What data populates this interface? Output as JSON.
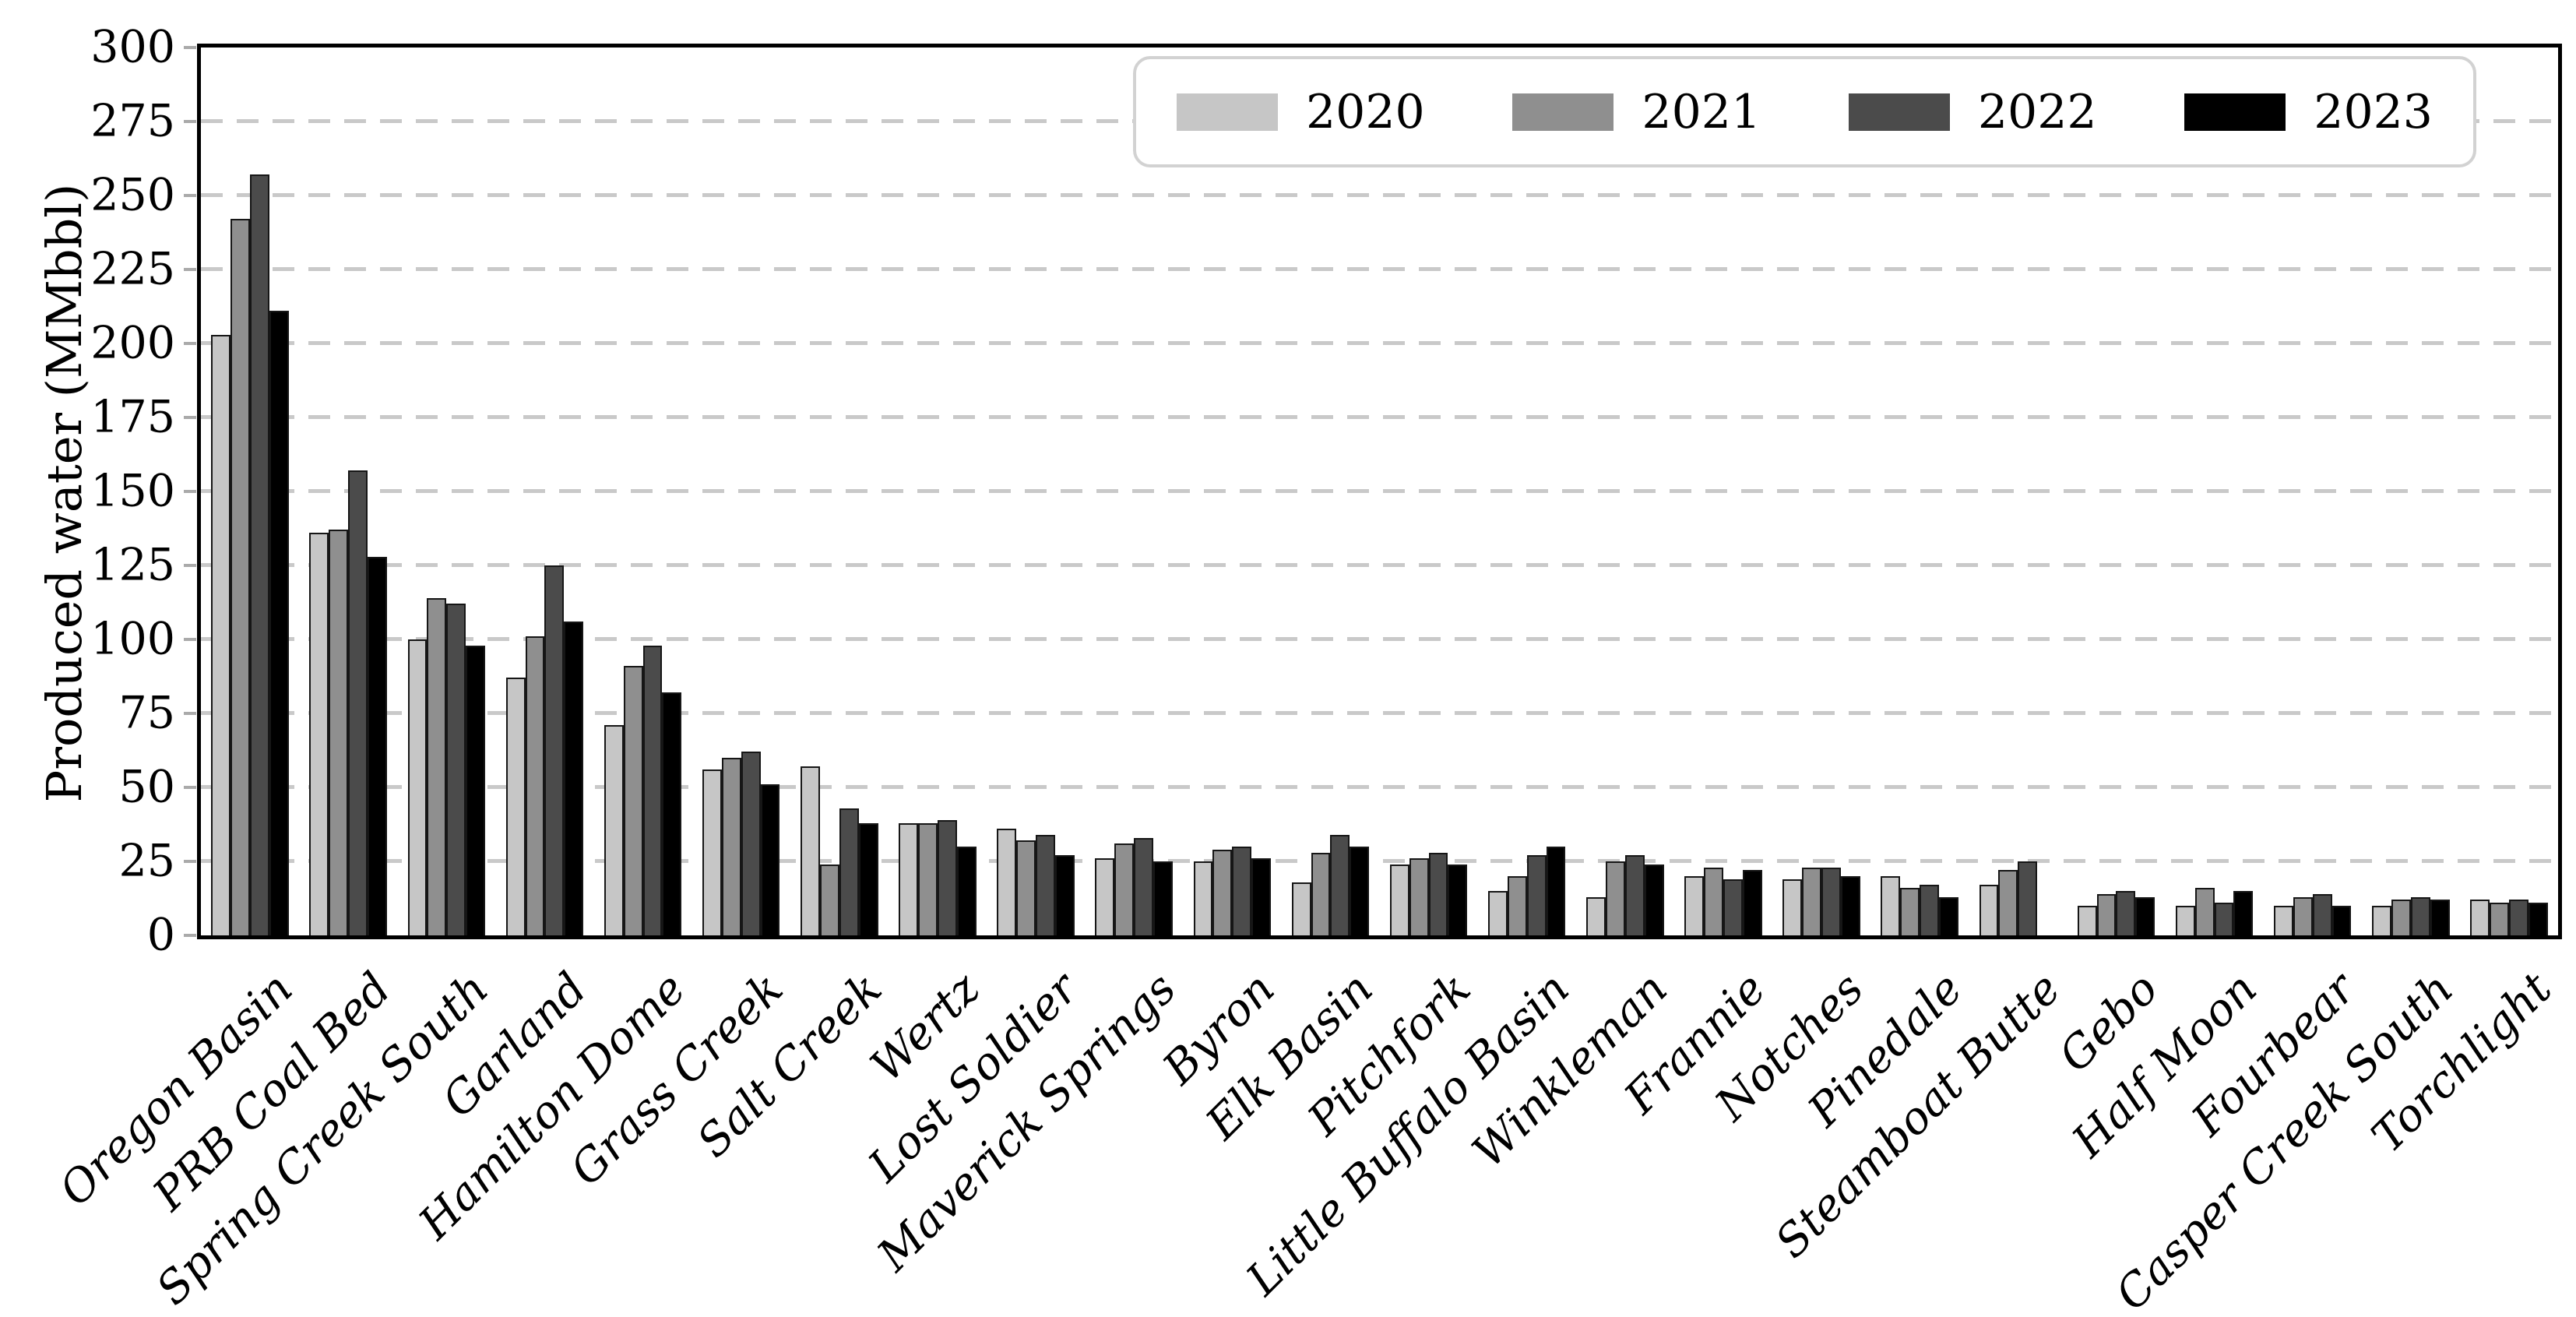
{
  "figure": {
    "background": "#ffffff",
    "frame_color": "#000000",
    "grid_color": "#c9c9c9"
  },
  "chart_data": {
    "type": "bar",
    "title": "",
    "xlabel": "",
    "ylabel": "Produced water (MMbbl)",
    "units": "MMbbl",
    "ylim": [
      0,
      300
    ],
    "ytick_interval": 25,
    "yticks": [
      0,
      25,
      50,
      75,
      100,
      125,
      150,
      175,
      200,
      225,
      250,
      275,
      300
    ],
    "grid": {
      "axis": "y",
      "style": "dashed",
      "on": true
    },
    "legend": {
      "position": "upper right",
      "orientation": "horizontal"
    },
    "categories": [
      "Oregon Basin",
      "PRB Coal Bed",
      "Spring Creek South",
      "Garland",
      "Hamilton Dome",
      "Grass Creek",
      "Salt Creek",
      "Wertz",
      "Lost Soldier",
      "Maverick Springs",
      "Byron",
      "Elk Basin",
      "Pitchfork",
      "Little Buffalo Basin",
      "Winkleman",
      "Frannie",
      "Notches",
      "Pinedale",
      "Steamboat Butte",
      "Gebo",
      "Half Moon",
      "Fourbear",
      "Casper Creek South",
      "Torchlight"
    ],
    "series": [
      {
        "name": "2020",
        "color": "#c6c6c6",
        "values": [
          203,
          136,
          100,
          87,
          71,
          56,
          57,
          38,
          36,
          26,
          25,
          18,
          24,
          15,
          13,
          20,
          19,
          20,
          17,
          10,
          10,
          10,
          10,
          12
        ]
      },
      {
        "name": "2021",
        "color": "#8f8f8f",
        "values": [
          242,
          137,
          114,
          101,
          91,
          60,
          24,
          38,
          32,
          31,
          29,
          28,
          26,
          20,
          25,
          23,
          23,
          16,
          22,
          14,
          16,
          13,
          12,
          11
        ]
      },
      {
        "name": "2022",
        "color": "#4b4b4b",
        "values": [
          257,
          157,
          112,
          125,
          98,
          62,
          43,
          39,
          34,
          33,
          30,
          34,
          28,
          27,
          27,
          19,
          23,
          17,
          25,
          15,
          11,
          14,
          13,
          12
        ]
      },
      {
        "name": "2023",
        "color": "#000000",
        "values": [
          211,
          128,
          98,
          106,
          82,
          51,
          38,
          30,
          27,
          25,
          26,
          30,
          24,
          30,
          24,
          22,
          20,
          13,
          0,
          13,
          15,
          10,
          12,
          11
        ]
      }
    ]
  }
}
